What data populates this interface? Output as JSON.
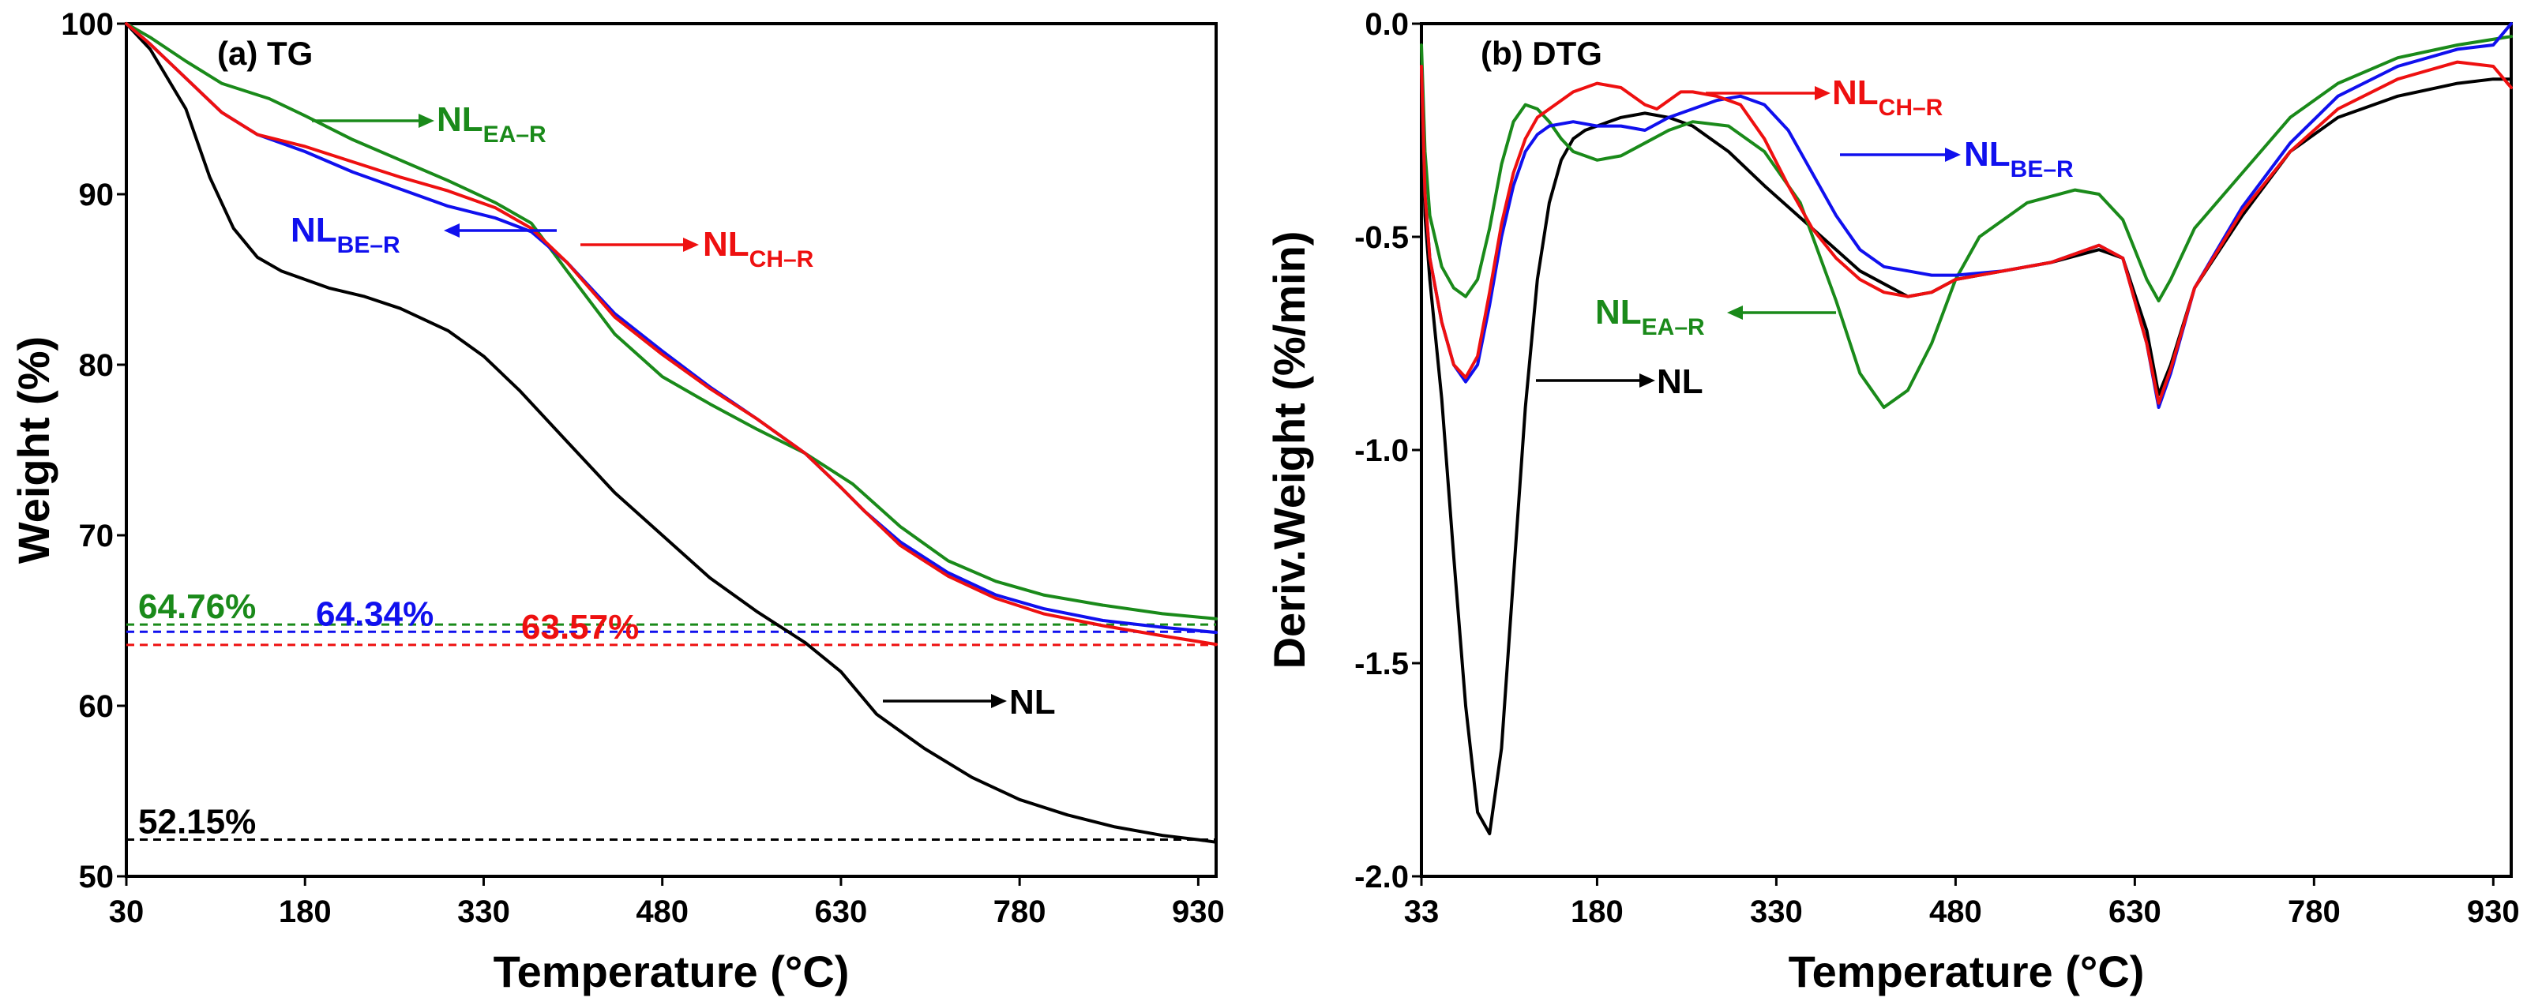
{
  "colors": {
    "NL": "#000000",
    "NL_EA_R": "#1a8a1a",
    "NL_BE_R": "#1010ee",
    "NL_CH_R": "#ee1010"
  },
  "chart_data": [
    {
      "type": "line",
      "title": "(a) TG",
      "xlabel": "Temperature (°C)",
      "ylabel": "Weight (%)",
      "xlim": [
        30,
        945
      ],
      "ylim": [
        50,
        100
      ],
      "xticks": [
        30,
        180,
        330,
        480,
        630,
        780,
        930
      ],
      "yticks": [
        50,
        60,
        70,
        80,
        90,
        100
      ],
      "series": [
        {
          "name": "NL",
          "label_base": "NL",
          "label_sub": "",
          "color": "#000000",
          "x": [
            30,
            50,
            80,
            100,
            120,
            140,
            160,
            180,
            200,
            230,
            260,
            300,
            330,
            360,
            400,
            440,
            480,
            520,
            560,
            600,
            630,
            660,
            700,
            740,
            780,
            820,
            860,
            900,
            930,
            945
          ],
          "y": [
            100,
            98.5,
            95,
            91,
            88,
            86.3,
            85.5,
            85,
            84.5,
            84,
            83.3,
            82,
            80.5,
            78.5,
            75.5,
            72.5,
            70,
            67.5,
            65.5,
            63.7,
            62,
            59.5,
            57.5,
            55.8,
            54.5,
            53.6,
            52.9,
            52.4,
            52.15,
            52
          ]
        },
        {
          "name": "NL_EA-R",
          "label_base": "NL",
          "label_sub": "EA–R",
          "color": "#1a8a1a",
          "x": [
            30,
            50,
            80,
            110,
            150,
            180,
            220,
            260,
            300,
            340,
            370,
            400,
            440,
            480,
            520,
            560,
            600,
            640,
            680,
            720,
            760,
            800,
            850,
            900,
            945
          ],
          "y": [
            100,
            99.2,
            97.8,
            96.5,
            95.6,
            94.6,
            93.2,
            92,
            90.8,
            89.5,
            88.3,
            85.5,
            81.8,
            79.3,
            77.7,
            76.2,
            74.8,
            73,
            70.5,
            68.5,
            67.3,
            66.5,
            65.9,
            65.4,
            65.1
          ]
        },
        {
          "name": "NL_BE-R",
          "label_base": "NL",
          "label_sub": "BE–R",
          "color": "#1010ee",
          "x": [
            30,
            50,
            80,
            110,
            140,
            180,
            220,
            260,
            300,
            340,
            370,
            400,
            440,
            480,
            520,
            560,
            600,
            630,
            650,
            680,
            720,
            760,
            800,
            850,
            900,
            945
          ],
          "y": [
            100,
            98.8,
            96.8,
            94.8,
            93.5,
            92.5,
            91.3,
            90.3,
            89.3,
            88.6,
            87.8,
            86,
            83,
            80.8,
            78.7,
            76.8,
            74.8,
            72.8,
            71.4,
            69.6,
            67.8,
            66.5,
            65.7,
            65,
            64.6,
            64.3
          ]
        },
        {
          "name": "NL_CH-R",
          "label_base": "NL",
          "label_sub": "CH–R",
          "color": "#ee1010",
          "x": [
            30,
            50,
            80,
            110,
            140,
            180,
            220,
            260,
            300,
            340,
            370,
            400,
            440,
            480,
            520,
            560,
            600,
            630,
            650,
            680,
            720,
            760,
            800,
            850,
            900,
            945
          ],
          "y": [
            100,
            98.8,
            96.8,
            94.8,
            93.5,
            92.8,
            91.9,
            91,
            90.2,
            89.2,
            88,
            86,
            82.8,
            80.6,
            78.6,
            76.8,
            74.8,
            72.8,
            71.4,
            69.4,
            67.6,
            66.3,
            65.4,
            64.7,
            64.1,
            63.6
          ]
        }
      ],
      "baselines": [
        {
          "series": "NL_EA-R",
          "value": 64.76,
          "label": "64.76%",
          "color": "#1a8a1a"
        },
        {
          "series": "NL_BE-R",
          "value": 64.34,
          "label": "64.34%",
          "color": "#1010ee"
        },
        {
          "series": "NL_CH-R",
          "value": 63.57,
          "label": "63.57%",
          "color": "#ee1010"
        },
        {
          "series": "NL",
          "value": 52.15,
          "label": "52.15%",
          "color": "#000000"
        }
      ]
    },
    {
      "type": "line",
      "title": "(b) DTG",
      "xlabel": "Temperature (°C)",
      "ylabel": "Deriv.Weight (%/min)",
      "xlim": [
        33,
        945
      ],
      "ylim": [
        -2.0,
        0.0
      ],
      "xticks": [
        33,
        180,
        330,
        480,
        630,
        780,
        930
      ],
      "yticks": [
        -2.0,
        -1.5,
        -1.0,
        -0.5,
        0.0
      ],
      "series": [
        {
          "name": "NL",
          "label_base": "NL",
          "label_sub": "",
          "color": "#000000",
          "x": [
            33,
            36,
            40,
            50,
            60,
            70,
            80,
            90,
            100,
            110,
            120,
            130,
            140,
            150,
            160,
            170,
            180,
            200,
            220,
            240,
            260,
            290,
            320,
            360,
            400,
            440,
            460,
            480,
            520,
            560,
            600,
            620,
            640,
            650,
            660,
            680,
            720,
            760,
            800,
            850,
            900,
            930,
            945
          ],
          "y": [
            -0.1,
            -0.45,
            -0.6,
            -0.88,
            -1.25,
            -1.6,
            -1.85,
            -1.9,
            -1.7,
            -1.3,
            -0.9,
            -0.6,
            -0.42,
            -0.32,
            -0.27,
            -0.25,
            -0.24,
            -0.22,
            -0.21,
            -0.22,
            -0.24,
            -0.3,
            -0.38,
            -0.48,
            -0.58,
            -0.64,
            -0.63,
            -0.6,
            -0.58,
            -0.56,
            -0.53,
            -0.55,
            -0.72,
            -0.87,
            -0.8,
            -0.62,
            -0.45,
            -0.3,
            -0.22,
            -0.17,
            -0.14,
            -0.13,
            -0.13
          ]
        },
        {
          "name": "NL_EA-R",
          "label_base": "NL",
          "label_sub": "EA–R",
          "color": "#1a8a1a",
          "x": [
            33,
            36,
            40,
            50,
            60,
            70,
            80,
            90,
            100,
            110,
            120,
            130,
            140,
            150,
            160,
            180,
            200,
            220,
            240,
            260,
            290,
            320,
            350,
            380,
            400,
            420,
            440,
            460,
            480,
            500,
            540,
            580,
            600,
            620,
            640,
            650,
            660,
            680,
            720,
            760,
            800,
            850,
            900,
            945
          ],
          "y": [
            -0.05,
            -0.3,
            -0.45,
            -0.57,
            -0.62,
            -0.64,
            -0.6,
            -0.48,
            -0.33,
            -0.23,
            -0.19,
            -0.2,
            -0.23,
            -0.27,
            -0.3,
            -0.32,
            -0.31,
            -0.28,
            -0.25,
            -0.23,
            -0.24,
            -0.3,
            -0.42,
            -0.65,
            -0.82,
            -0.9,
            -0.86,
            -0.75,
            -0.6,
            -0.5,
            -0.42,
            -0.39,
            -0.4,
            -0.46,
            -0.6,
            -0.65,
            -0.6,
            -0.48,
            -0.35,
            -0.22,
            -0.14,
            -0.08,
            -0.05,
            -0.03
          ]
        },
        {
          "name": "NL_BE-R",
          "label_base": "NL",
          "label_sub": "BE–R",
          "color": "#1010ee",
          "x": [
            33,
            36,
            40,
            50,
            60,
            70,
            80,
            90,
            100,
            110,
            120,
            130,
            140,
            160,
            180,
            200,
            220,
            240,
            260,
            280,
            300,
            320,
            340,
            360,
            380,
            400,
            420,
            440,
            460,
            480,
            520,
            560,
            600,
            620,
            640,
            650,
            660,
            680,
            720,
            760,
            800,
            850,
            900,
            930,
            945
          ],
          "y": [
            -0.1,
            -0.4,
            -0.55,
            -0.7,
            -0.8,
            -0.84,
            -0.8,
            -0.66,
            -0.5,
            -0.38,
            -0.3,
            -0.26,
            -0.24,
            -0.23,
            -0.24,
            -0.24,
            -0.25,
            -0.22,
            -0.2,
            -0.18,
            -0.17,
            -0.19,
            -0.25,
            -0.35,
            -0.45,
            -0.53,
            -0.57,
            -0.58,
            -0.59,
            -0.59,
            -0.58,
            -0.56,
            -0.52,
            -0.55,
            -0.75,
            -0.9,
            -0.82,
            -0.62,
            -0.43,
            -0.28,
            -0.17,
            -0.1,
            -0.06,
            -0.05,
            0.0
          ]
        },
        {
          "name": "NL_CH-R",
          "label_base": "NL",
          "label_sub": "CH–R",
          "color": "#ee1010",
          "x": [
            33,
            36,
            40,
            50,
            60,
            70,
            80,
            90,
            100,
            110,
            120,
            130,
            140,
            160,
            180,
            200,
            220,
            230,
            240,
            250,
            260,
            280,
            300,
            320,
            340,
            360,
            380,
            400,
            420,
            440,
            460,
            480,
            520,
            560,
            600,
            620,
            640,
            650,
            660,
            680,
            720,
            760,
            800,
            850,
            900,
            930,
            945
          ],
          "y": [
            -0.1,
            -0.4,
            -0.55,
            -0.7,
            -0.8,
            -0.83,
            -0.78,
            -0.63,
            -0.47,
            -0.35,
            -0.27,
            -0.22,
            -0.2,
            -0.16,
            -0.14,
            -0.15,
            -0.19,
            -0.2,
            -0.18,
            -0.16,
            -0.16,
            -0.17,
            -0.19,
            -0.27,
            -0.38,
            -0.48,
            -0.55,
            -0.6,
            -0.63,
            -0.64,
            -0.63,
            -0.6,
            -0.58,
            -0.56,
            -0.52,
            -0.55,
            -0.75,
            -0.89,
            -0.81,
            -0.62,
            -0.44,
            -0.3,
            -0.2,
            -0.13,
            -0.09,
            -0.1,
            -0.15
          ]
        }
      ]
    }
  ]
}
